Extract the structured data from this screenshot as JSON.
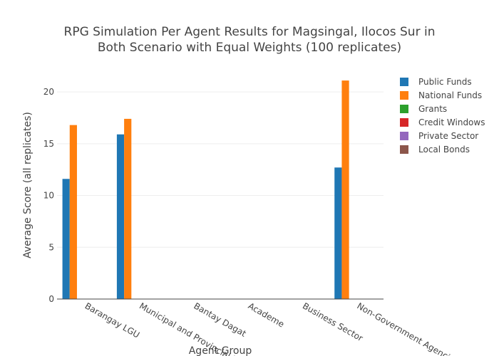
{
  "chart_data": {
    "type": "bar",
    "title_line1": "RPG Simulation Per Agent Results for Magsingal, Ilocos Sur in",
    "title_line2": "Both Scenario with Equal Weights (100 replicates)",
    "xlabel": "Agent Group",
    "ylabel": "Average Score (all replicates)",
    "ylim": [
      0,
      22
    ],
    "yticks": [
      0,
      5,
      10,
      15,
      20
    ],
    "grid": true,
    "legend_position": "right",
    "categories": [
      "Barangay LGU",
      "Municipal and Provincial LGU",
      "Bantay Dagat",
      "Academe",
      "Business Sector",
      "Non-Government Agencies"
    ],
    "series": [
      {
        "name": "Public Funds",
        "color": "#1f77b4",
        "values": [
          11.6,
          15.9,
          0,
          0,
          0,
          12.7
        ]
      },
      {
        "name": "National Funds",
        "color": "#ff7f0e",
        "values": [
          16.8,
          17.4,
          0,
          0,
          0,
          21.1
        ]
      },
      {
        "name": "Grants",
        "color": "#2ca02c",
        "values": [
          0,
          0,
          0,
          0,
          0,
          0
        ]
      },
      {
        "name": "Credit Windows",
        "color": "#d62728",
        "values": [
          0,
          0,
          0,
          0,
          0,
          0
        ]
      },
      {
        "name": "Private Sector",
        "color": "#9467bd",
        "values": [
          0,
          0,
          0,
          0,
          0,
          0
        ]
      },
      {
        "name": "Local Bonds",
        "color": "#8c564b",
        "values": [
          0,
          0,
          0,
          0,
          0,
          0
        ]
      }
    ]
  }
}
